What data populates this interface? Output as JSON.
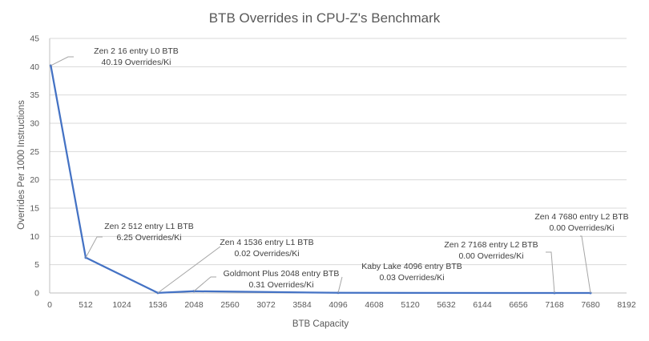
{
  "chart_data": {
    "type": "line",
    "title": "BTB Overrides in CPU-Z's Benchmark",
    "xlabel": "BTB Capacity",
    "ylabel": "Overrides Per 1000 Instructions",
    "xlim": [
      0,
      8192
    ],
    "ylim": [
      0,
      45
    ],
    "xticks": [
      0,
      512,
      1024,
      1536,
      2048,
      2560,
      3072,
      3584,
      4096,
      4608,
      5120,
      5632,
      6144,
      6656,
      7168,
      7680,
      8192
    ],
    "yticks": [
      0,
      5,
      10,
      15,
      20,
      25,
      30,
      35,
      40,
      45
    ],
    "grid": true,
    "legend": "none",
    "series": [
      {
        "name": "Overrides",
        "color": "#4472c4",
        "points": [
          {
            "x": 16,
            "y": 40.19,
            "label_name": "Zen 2 16 entry L0 BTB",
            "label_value": "40.19 Overrides/Ki"
          },
          {
            "x": 512,
            "y": 6.25,
            "label_name": "Zen 2 512 entry L1 BTB",
            "label_value": "6.25 Overrides/Ki"
          },
          {
            "x": 1536,
            "y": 0.02,
            "label_name": "Zen 4 1536 entry L1 BTB",
            "label_value": "0.02 Overrides/Ki"
          },
          {
            "x": 2048,
            "y": 0.31,
            "label_name": "Goldmont Plus 2048 entry BTB",
            "label_value": "0.31 Overrides/Ki"
          },
          {
            "x": 4096,
            "y": 0.03,
            "label_name": "Kaby Lake 4096 entry BTB",
            "label_value": "0.03 Overrides/Ki"
          },
          {
            "x": 7168,
            "y": 0.0,
            "label_name": "Zen 2 7168 entry L2 BTB",
            "label_value": "0.00 Overrides/Ki"
          },
          {
            "x": 7680,
            "y": 0.0,
            "label_name": "Zen 4 7680 entry L2 BTB",
            "label_value": "0.00 Overrides/Ki"
          }
        ]
      }
    ]
  }
}
